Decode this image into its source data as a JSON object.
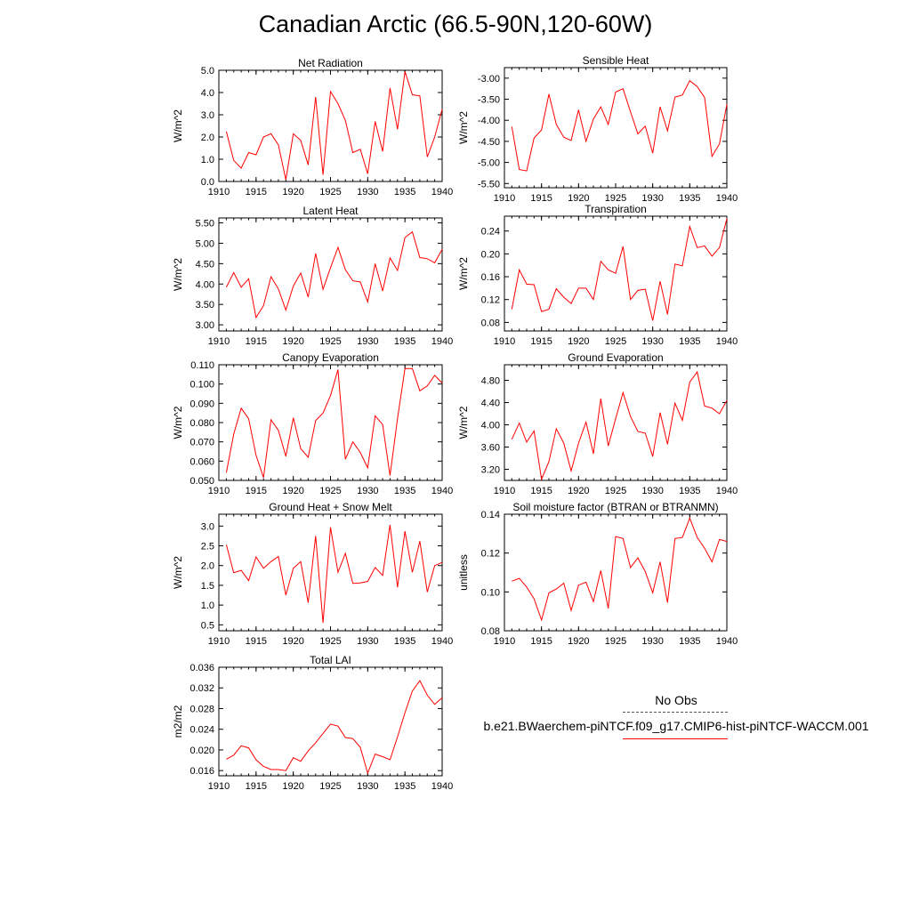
{
  "figure_title": "Canadian Arctic (66.5-90N,120-60W)",
  "legend": {
    "obs_label": "No Obs",
    "run_label": "b.e21.BWaerchem-piNTCF.f09_g17.CMIP6-hist-piNTCF-WACCM.001",
    "run_color": "#ff0000",
    "obs_color": "#555555"
  },
  "chart_data": [
    {
      "type": "line",
      "title": "Net Radiation",
      "ylabel": "W/m^2",
      "xlim": [
        1910,
        1940
      ],
      "ylim": [
        0.0,
        5.0
      ],
      "xticks": [
        "1910",
        "1915",
        "1920",
        "1925",
        "1930",
        "1935",
        "1940"
      ],
      "yticks": [
        "0.0",
        "1.0",
        "2.0",
        "3.0",
        "4.0",
        "5.0"
      ],
      "x": [
        1911,
        1912,
        1913,
        1914,
        1915,
        1916,
        1917,
        1918,
        1919,
        1920,
        1921,
        1922,
        1923,
        1924,
        1925,
        1926,
        1927,
        1928,
        1929,
        1930,
        1931,
        1932,
        1933,
        1934,
        1935,
        1936,
        1937,
        1938,
        1939,
        1940
      ],
      "series": [
        {
          "color": "#ff0000",
          "values": [
            2.25,
            0.95,
            0.6,
            1.3,
            1.2,
            2.0,
            2.15,
            1.65,
            0.08,
            2.15,
            1.85,
            0.75,
            3.8,
            0.3,
            4.05,
            3.5,
            2.75,
            1.3,
            1.45,
            0.35,
            2.7,
            1.35,
            4.2,
            2.35,
            4.95,
            3.9,
            3.85,
            1.1,
            2.0,
            3.25
          ]
        }
      ]
    },
    {
      "type": "line",
      "title": "Sensible Heat",
      "ylabel": "W/m^2",
      "xlim": [
        1910,
        1940
      ],
      "ylim": [
        -5.6,
        -2.75
      ],
      "xticks": [
        "1910",
        "1915",
        "1920",
        "1925",
        "1930",
        "1935",
        "1940"
      ],
      "yticks": [
        "-5.50",
        "-5.00",
        "-4.50",
        "-4.00",
        "-3.50",
        "-3.00"
      ],
      "x": [
        1911,
        1912,
        1913,
        1914,
        1915,
        1916,
        1917,
        1918,
        1919,
        1920,
        1921,
        1922,
        1923,
        1924,
        1925,
        1926,
        1927,
        1928,
        1929,
        1930,
        1931,
        1932,
        1933,
        1934,
        1935,
        1936,
        1937,
        1938,
        1939,
        1940
      ],
      "series": [
        {
          "color": "#ff0000",
          "values": [
            -4.15,
            -5.17,
            -5.2,
            -4.42,
            -4.23,
            -3.38,
            -4.1,
            -4.4,
            -4.48,
            -3.75,
            -4.5,
            -3.97,
            -3.68,
            -4.1,
            -3.33,
            -3.25,
            -3.8,
            -4.32,
            -4.14,
            -4.78,
            -3.68,
            -4.25,
            -3.45,
            -3.4,
            -3.06,
            -3.2,
            -3.46,
            -4.86,
            -4.56,
            -3.62
          ]
        }
      ]
    },
    {
      "type": "line",
      "title": "Latent Heat",
      "ylabel": "W/m^2",
      "xlim": [
        1910,
        1940
      ],
      "ylim": [
        2.85,
        5.62
      ],
      "xticks": [
        "1910",
        "1915",
        "1920",
        "1925",
        "1930",
        "1935",
        "1940"
      ],
      "yticks": [
        "3.00",
        "3.50",
        "4.00",
        "4.50",
        "5.00",
        "5.50"
      ],
      "x": [
        1911,
        1912,
        1913,
        1914,
        1915,
        1916,
        1917,
        1918,
        1919,
        1920,
        1921,
        1922,
        1923,
        1924,
        1925,
        1926,
        1927,
        1928,
        1929,
        1930,
        1931,
        1932,
        1933,
        1934,
        1935,
        1936,
        1937,
        1938,
        1939,
        1940
      ],
      "series": [
        {
          "color": "#ff0000",
          "values": [
            3.92,
            4.28,
            3.92,
            4.13,
            3.18,
            3.47,
            4.18,
            3.88,
            3.36,
            3.95,
            4.27,
            3.68,
            4.75,
            3.87,
            4.4,
            4.9,
            4.35,
            4.08,
            4.05,
            3.56,
            4.5,
            3.83,
            4.64,
            4.33,
            5.14,
            5.28,
            4.65,
            4.62,
            4.52,
            4.85
          ]
        }
      ]
    },
    {
      "type": "line",
      "title": "Transpiration",
      "ylabel": "W/m^2",
      "xlim": [
        1910,
        1940
      ],
      "ylim": [
        0.065,
        0.266
      ],
      "xticks": [
        "1910",
        "1915",
        "1920",
        "1925",
        "1930",
        "1935",
        "1940"
      ],
      "yticks": [
        "0.08",
        "0.12",
        "0.16",
        "0.20",
        "0.24"
      ],
      "x": [
        1911,
        1912,
        1913,
        1914,
        1915,
        1916,
        1917,
        1918,
        1919,
        1920,
        1921,
        1922,
        1923,
        1924,
        1925,
        1926,
        1927,
        1928,
        1929,
        1930,
        1931,
        1932,
        1933,
        1934,
        1935,
        1936,
        1937,
        1938,
        1939,
        1940
      ],
      "series": [
        {
          "color": "#ff0000",
          "values": [
            0.103,
            0.172,
            0.147,
            0.146,
            0.099,
            0.103,
            0.139,
            0.124,
            0.113,
            0.14,
            0.14,
            0.12,
            0.187,
            0.172,
            0.166,
            0.213,
            0.12,
            0.136,
            0.138,
            0.083,
            0.152,
            0.094,
            0.182,
            0.179,
            0.248,
            0.211,
            0.214,
            0.196,
            0.211,
            0.262
          ]
        }
      ]
    },
    {
      "type": "line",
      "title": "Canopy Evaporation",
      "ylabel": "W/m^2",
      "xlim": [
        1910,
        1940
      ],
      "ylim": [
        0.05,
        0.11
      ],
      "xticks": [
        "1910",
        "1915",
        "1920",
        "1925",
        "1930",
        "1935",
        "1940"
      ],
      "yticks": [
        "0.050",
        "0.060",
        "0.070",
        "0.080",
        "0.090",
        "0.100",
        "0.110"
      ],
      "x": [
        1911,
        1912,
        1913,
        1914,
        1915,
        1916,
        1917,
        1918,
        1919,
        1920,
        1921,
        1922,
        1923,
        1924,
        1925,
        1926,
        1927,
        1928,
        1929,
        1930,
        1931,
        1932,
        1933,
        1934,
        1935,
        1936,
        1937,
        1938,
        1939,
        1940
      ],
      "series": [
        {
          "color": "#ff0000",
          "values": [
            0.054,
            0.074,
            0.0875,
            0.082,
            0.063,
            0.0515,
            0.0815,
            0.076,
            0.0625,
            0.0825,
            0.0665,
            0.062,
            0.081,
            0.085,
            0.094,
            0.1075,
            0.061,
            0.07,
            0.0645,
            0.0565,
            0.0835,
            0.079,
            0.0525,
            0.082,
            0.108,
            0.108,
            0.0965,
            0.099,
            0.1045,
            0.1005
          ]
        }
      ]
    },
    {
      "type": "line",
      "title": "Ground Evaporation",
      "ylabel": "W/m^2",
      "xlim": [
        1910,
        1940
      ],
      "ylim": [
        3.0,
        5.08
      ],
      "xticks": [
        "1910",
        "1915",
        "1920",
        "1925",
        "1930",
        "1935",
        "1940"
      ],
      "yticks": [
        "3.20",
        "3.60",
        "4.00",
        "4.40",
        "4.80"
      ],
      "x": [
        1911,
        1912,
        1913,
        1914,
        1915,
        1916,
        1917,
        1918,
        1919,
        1920,
        1921,
        1922,
        1923,
        1924,
        1925,
        1926,
        1927,
        1928,
        1929,
        1930,
        1931,
        1932,
        1933,
        1934,
        1935,
        1936,
        1937,
        1938,
        1939,
        1940
      ],
      "series": [
        {
          "color": "#ff0000",
          "values": [
            3.74,
            4.03,
            3.69,
            3.89,
            3.02,
            3.34,
            3.93,
            3.67,
            3.17,
            3.67,
            4.05,
            3.48,
            4.47,
            3.62,
            4.11,
            4.58,
            4.15,
            3.88,
            3.85,
            3.43,
            4.22,
            3.65,
            4.39,
            4.08,
            4.77,
            4.95,
            4.34,
            4.3,
            4.2,
            4.44
          ]
        }
      ]
    },
    {
      "type": "line",
      "title": "Ground Heat + Snow Melt",
      "ylabel": "W/m^2",
      "xlim": [
        1910,
        1940
      ],
      "ylim": [
        0.35,
        3.3
      ],
      "xticks": [
        "1910",
        "1915",
        "1920",
        "1925",
        "1930",
        "1935",
        "1940"
      ],
      "yticks": [
        "0.5",
        "1.0",
        "1.5",
        "2.0",
        "2.5",
        "3.0"
      ],
      "x": [
        1911,
        1912,
        1913,
        1914,
        1915,
        1916,
        1917,
        1918,
        1919,
        1920,
        1921,
        1922,
        1923,
        1924,
        1925,
        1926,
        1927,
        1928,
        1929,
        1930,
        1931,
        1932,
        1933,
        1934,
        1935,
        1936,
        1937,
        1938,
        1939,
        1940
      ],
      "series": [
        {
          "color": "#ff0000",
          "values": [
            2.53,
            1.82,
            1.88,
            1.62,
            2.22,
            1.93,
            2.1,
            2.23,
            1.25,
            1.93,
            2.1,
            1.06,
            2.75,
            0.55,
            2.97,
            1.83,
            2.31,
            1.55,
            1.56,
            1.6,
            1.95,
            1.75,
            3.03,
            1.45,
            2.87,
            1.83,
            2.62,
            1.33,
            2.0,
            2.08
          ]
        }
      ]
    },
    {
      "type": "line",
      "title": "Soil moisture factor (BTRAN or BTRANMN)",
      "ylabel": "unitless",
      "xlim": [
        1910,
        1940
      ],
      "ylim": [
        0.08,
        0.14
      ],
      "xticks": [
        "1910",
        "1915",
        "1920",
        "1925",
        "1930",
        "1935",
        "1940"
      ],
      "yticks": [
        "0.08",
        "0.10",
        "0.12",
        "0.14"
      ],
      "x": [
        1911,
        1912,
        1913,
        1914,
        1915,
        1916,
        1917,
        1918,
        1919,
        1920,
        1921,
        1922,
        1923,
        1924,
        1925,
        1926,
        1927,
        1928,
        1929,
        1930,
        1931,
        1932,
        1933,
        1934,
        1935,
        1936,
        1937,
        1938,
        1939,
        1940
      ],
      "series": [
        {
          "color": "#ff0000",
          "values": [
            0.1055,
            0.107,
            0.1025,
            0.0965,
            0.0855,
            0.0995,
            0.1015,
            0.1045,
            0.0905,
            0.1035,
            0.105,
            0.095,
            0.111,
            0.0915,
            0.1285,
            0.1275,
            0.1125,
            0.1175,
            0.1105,
            0.0995,
            0.1155,
            0.0945,
            0.1275,
            0.128,
            0.138,
            0.128,
            0.1225,
            0.1155,
            0.127,
            0.126
          ]
        }
      ]
    },
    {
      "type": "line",
      "title": "Total LAI",
      "ylabel": "m2/m2",
      "xlim": [
        1910,
        1940
      ],
      "ylim": [
        0.015,
        0.036
      ],
      "xticks": [
        "1910",
        "1915",
        "1920",
        "1925",
        "1930",
        "1935",
        "1940"
      ],
      "yticks": [
        "0.016",
        "0.020",
        "0.024",
        "0.028",
        "0.032",
        "0.036"
      ],
      "x": [
        1911,
        1912,
        1913,
        1914,
        1915,
        1916,
        1917,
        1918,
        1919,
        1920,
        1921,
        1922,
        1923,
        1924,
        1925,
        1926,
        1927,
        1928,
        1929,
        1930,
        1931,
        1932,
        1933,
        1934,
        1935,
        1936,
        1937,
        1938,
        1939,
        1940
      ],
      "series": [
        {
          "color": "#ff0000",
          "values": [
            0.0182,
            0.019,
            0.0208,
            0.0204,
            0.0181,
            0.0168,
            0.0162,
            0.0162,
            0.016,
            0.0185,
            0.0178,
            0.0198,
            0.0214,
            0.0232,
            0.025,
            0.0246,
            0.0224,
            0.0222,
            0.0205,
            0.0155,
            0.0192,
            0.0187,
            0.0181,
            0.0225,
            0.0272,
            0.0314,
            0.0334,
            0.0306,
            0.0288,
            0.0301
          ]
        }
      ]
    }
  ]
}
